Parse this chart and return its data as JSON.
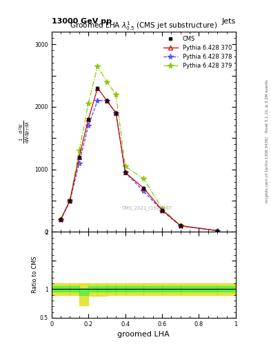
{
  "title": "Groomed LHA $\\lambda^{1}_{0.5}$ (CMS jet substructure)",
  "header_left": "13000 GeV pp",
  "header_right": "Jets",
  "right_label1": "Rivet 3.1.10, ≥ 3.2M events",
  "right_label2": "mcplots.cern.ch [arXiv:1306.3436]",
  "xlabel": "groomed LHA",
  "ylabel_ratio": "Ratio to CMS",
  "watermark": "CMS_2021_I1920187",
  "x_vals": [
    0.05,
    0.1,
    0.15,
    0.2,
    0.25,
    0.3,
    0.35,
    0.4,
    0.5,
    0.6,
    0.7,
    0.9
  ],
  "y_cms": [
    200,
    500,
    1200,
    1800,
    2300,
    2100,
    1900,
    950,
    700,
    350,
    100,
    20
  ],
  "y_py370": [
    200,
    500,
    1200,
    1800,
    2300,
    2100,
    1900,
    950,
    700,
    350,
    100,
    20
  ],
  "y_py378": [
    190,
    490,
    1100,
    1700,
    2100,
    2100,
    1900,
    950,
    650,
    340,
    95,
    19
  ],
  "y_py379": [
    200,
    510,
    1300,
    2050,
    2650,
    2400,
    2200,
    1050,
    850,
    380,
    100,
    20
  ],
  "cms_color": "#111111",
  "py370_color": "#cc0000",
  "py378_color": "#4444ff",
  "py379_color": "#88cc00",
  "bin_edges": [
    0.0,
    0.1,
    0.15,
    0.2,
    0.25,
    0.3,
    0.35,
    0.4,
    0.5,
    0.6,
    0.7,
    0.9,
    1.0
  ],
  "green_band_lo": [
    0.95,
    0.95,
    0.9,
    0.95,
    0.95,
    0.95,
    0.95,
    0.95,
    0.95,
    0.95,
    0.95,
    0.95
  ],
  "green_band_hi": [
    1.05,
    1.05,
    1.02,
    1.05,
    1.05,
    1.05,
    1.05,
    1.05,
    1.05,
    1.05,
    1.05,
    1.05
  ],
  "yellow_band_lo": [
    0.9,
    0.9,
    0.72,
    0.88,
    0.88,
    0.9,
    0.9,
    0.9,
    0.9,
    0.9,
    0.9,
    0.9
  ],
  "yellow_band_hi": [
    1.1,
    1.1,
    1.1,
    1.1,
    1.1,
    1.1,
    1.1,
    1.1,
    1.1,
    1.1,
    1.1,
    1.1
  ],
  "ylim_main": [
    0,
    3200
  ],
  "ylim_ratio": [
    0.5,
    2.0
  ],
  "xlim": [
    0.0,
    1.0
  ]
}
